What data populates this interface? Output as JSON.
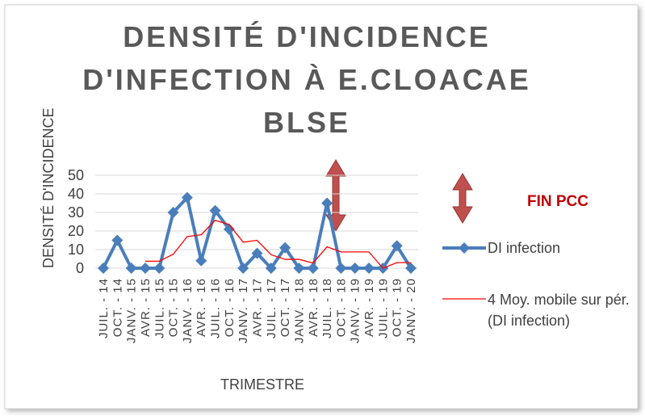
{
  "chart_data": {
    "type": "line",
    "title": "DENSITÉ D'INCIDENCE D'INFECTION À E.CLOACAE BLSE",
    "x_label": "TRIMESTRE",
    "y_label": "DENSITÉ D'INCIDENCE",
    "annotation": "FIN PCC",
    "categories": [
      "JUIL. - 14",
      "OCT. - 14",
      "JANV. - 15",
      "AVR. - 15",
      "JUIL. - 15",
      "OCT. - 15",
      "JANV. - 16",
      "AVR. - 16",
      "JUIL. - 16",
      "OCT. - 16",
      "JANV. - 17",
      "AVR. - 17",
      "JUIL. - 17",
      "OCT. - 17",
      "JANV. - 18",
      "AVR. - 18",
      "JUIL. - 18",
      "OCT. - 18",
      "JANV. - 19",
      "AVR. - 19",
      "JUIL. - 19",
      "OCT. - 19",
      "JANV. - 20"
    ],
    "series": [
      {
        "name": "DI infection",
        "color": "#4a7ebb",
        "marker": "diamond",
        "values": [
          0,
          15,
          0,
          0,
          0,
          30,
          38,
          4,
          31,
          21,
          0,
          8,
          0,
          11,
          0,
          0,
          35,
          0,
          0,
          0,
          0,
          12,
          0
        ]
      },
      {
        "name": "4 Moy. mobile sur pér. (DI infection)",
        "color": "#ff0000",
        "values": [
          null,
          null,
          null,
          3.75,
          3.75,
          7.5,
          17,
          18,
          25.75,
          23.5,
          14,
          15,
          7.25,
          4.75,
          4.75,
          2.75,
          11.5,
          8.75,
          8.75,
          8.75,
          0,
          3,
          3
        ]
      }
    ],
    "ylim": [
      0,
      50
    ],
    "yticks": [
      0,
      10,
      20,
      30,
      40,
      50
    ],
    "grid": true
  }
}
